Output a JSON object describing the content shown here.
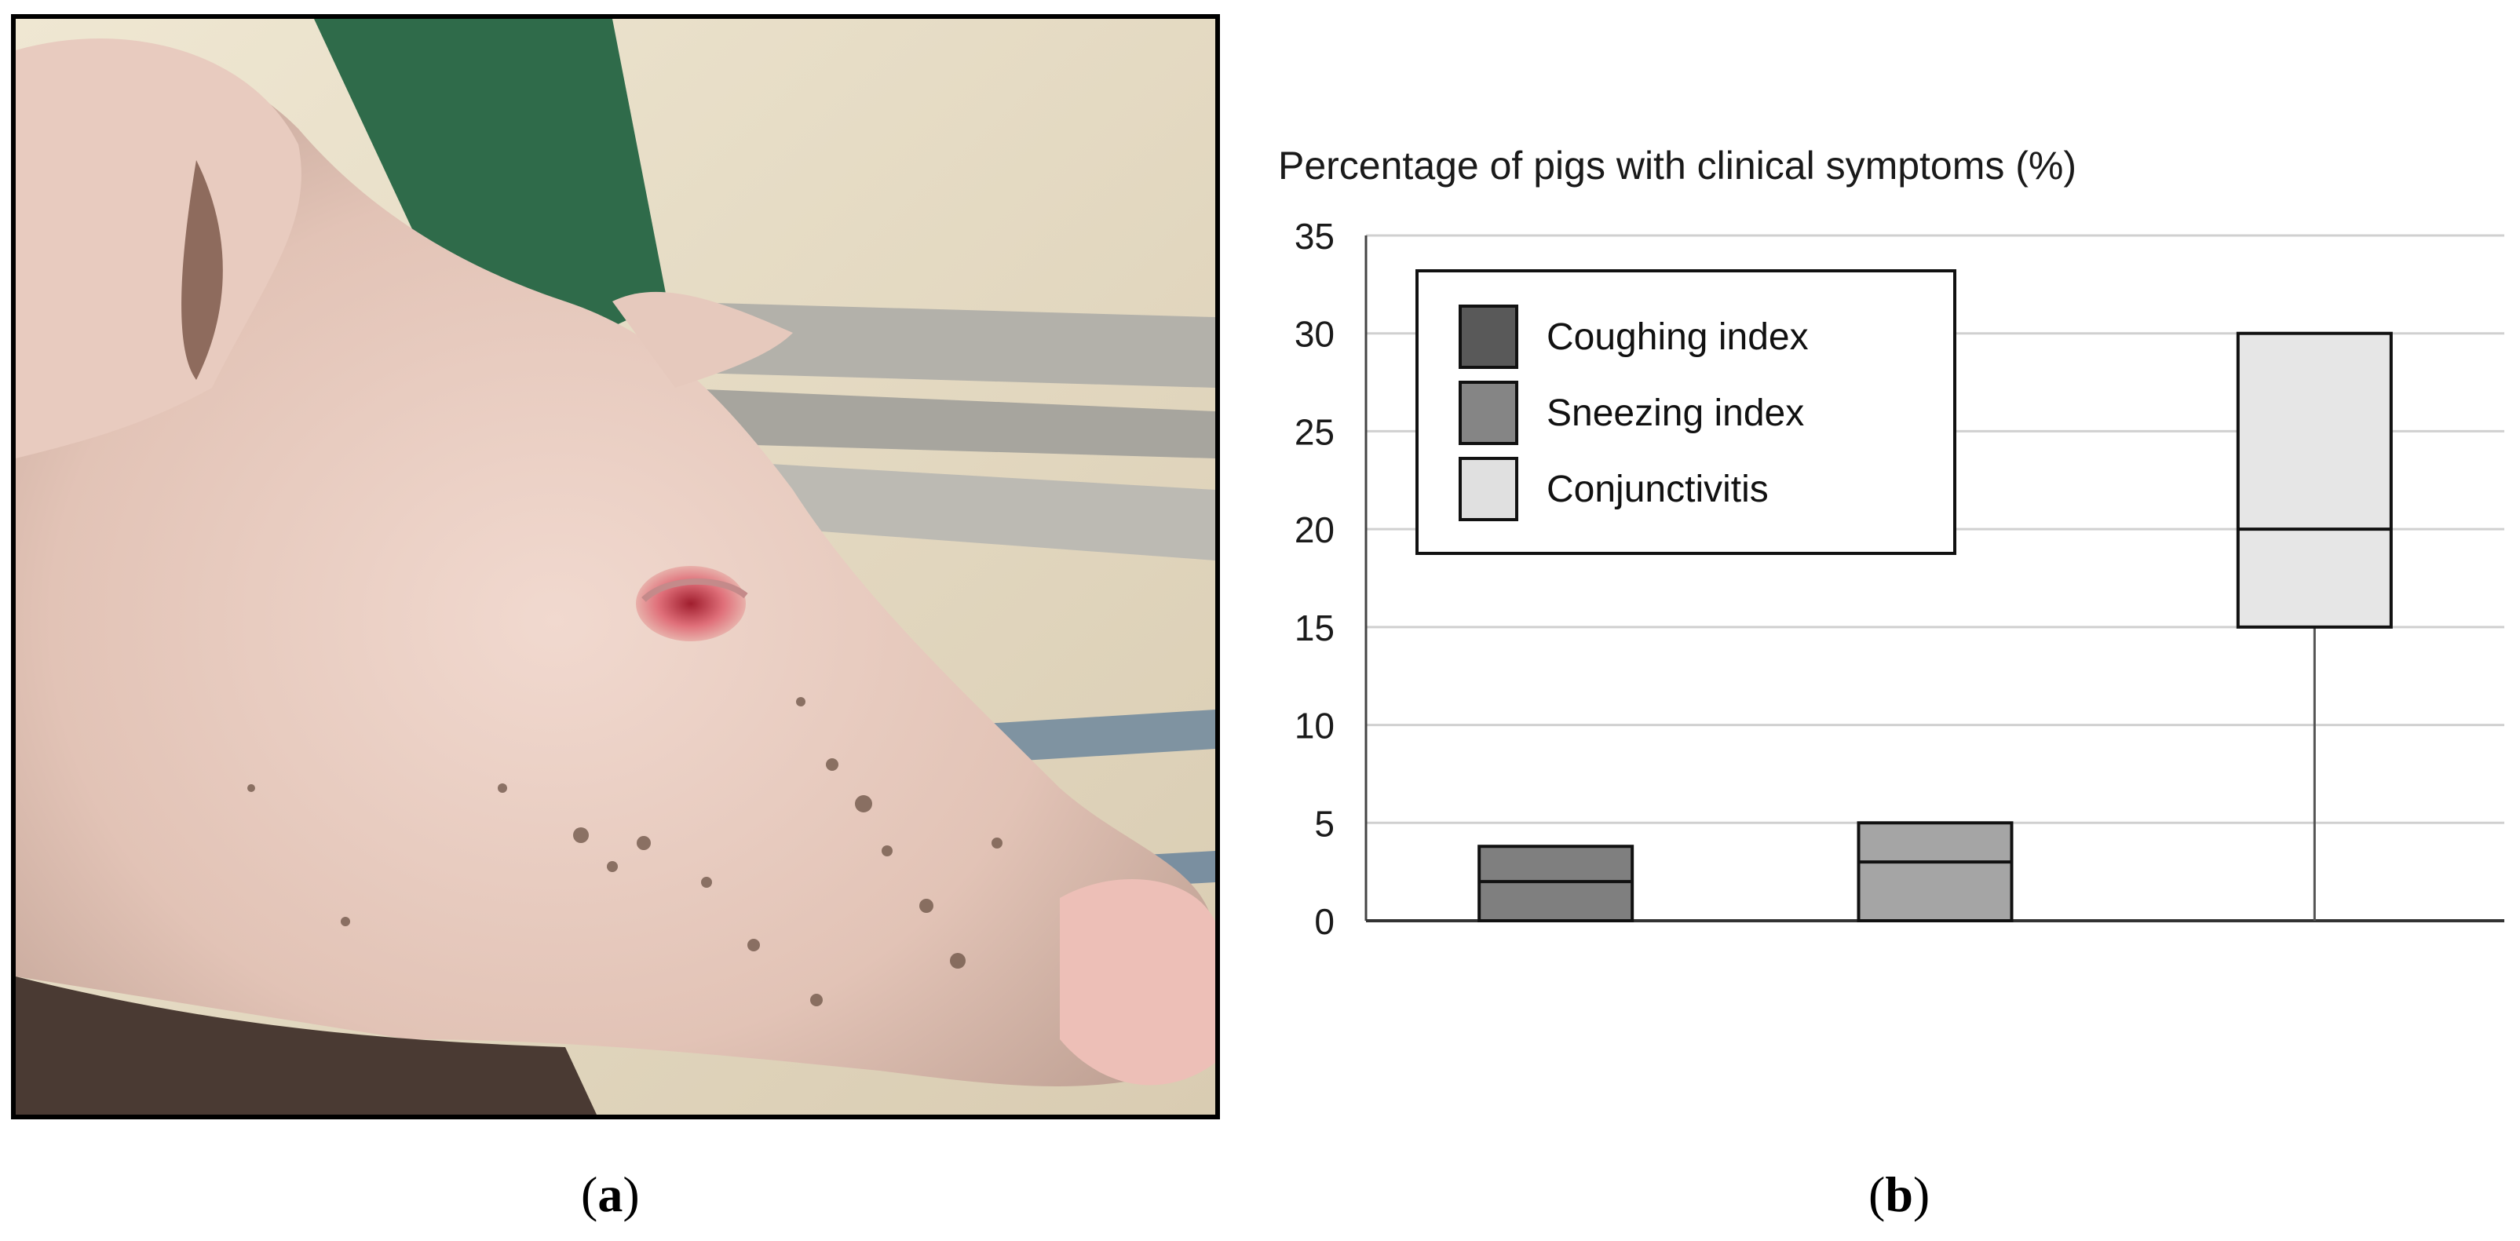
{
  "panel_a": {
    "caption_open": "(",
    "caption_letter": "a",
    "caption_close": ")"
  },
  "panel_b": {
    "caption_open": "(",
    "caption_letter": "b",
    "caption_close": ")"
  },
  "chart_data": {
    "type": "box",
    "title": "Percentage of pigs with clinical symptoms (%)",
    "ylim": [
      0,
      35
    ],
    "yticks": [
      "0",
      "5",
      "10",
      "15",
      "20",
      "25",
      "30",
      "35"
    ],
    "grid": true,
    "legend_position": "top-left",
    "series": [
      {
        "name": "Coughing index",
        "min": 0,
        "q1": 0,
        "median": 2,
        "q3": 3.8,
        "max": 3.8,
        "color": "#7f7f7f"
      },
      {
        "name": "Sneezing index",
        "min": 0,
        "q1": 0,
        "median": 3,
        "q3": 5,
        "max": 5,
        "color": "#a5a5a5"
      },
      {
        "name": "Conjunctivitis",
        "min": 0,
        "q1": 15,
        "median": 20,
        "q3": 30,
        "max": 30,
        "color": "#e6e6e6"
      }
    ],
    "legend_colors": [
      "#595959",
      "#858585",
      "#e0e0e0"
    ]
  }
}
